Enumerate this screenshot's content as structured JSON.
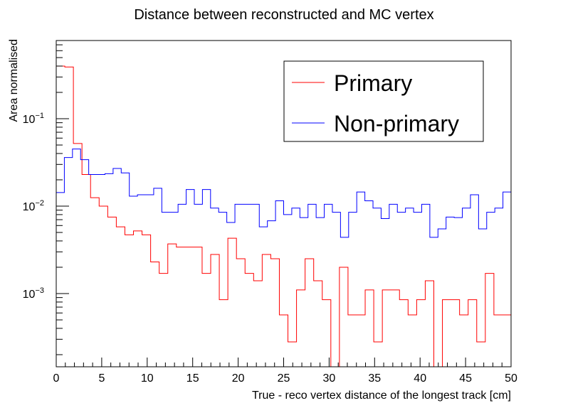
{
  "chart_data": {
    "type": "histogram-step",
    "title": "Distance between reconstructed and MC vertex",
    "xlabel": "True - reco vertex distance of the longest track [cm]",
    "ylabel": "Area normalised",
    "xlim": [
      0,
      50
    ],
    "ylim": [
      0.00015,
      0.75
    ],
    "yscale": "log",
    "grid": false,
    "legend_position": "top-right",
    "bin_width": 1,
    "x_ticks": [
      0,
      5,
      10,
      15,
      20,
      25,
      30,
      35,
      40,
      45,
      50
    ],
    "x_tick_labels": [
      "0",
      "5",
      "10",
      "15",
      "20",
      "25",
      "30",
      "35",
      "40",
      "45",
      "50"
    ],
    "y_tick_labels": [
      {
        "value": 0.1,
        "base": "10",
        "exp": "−1"
      },
      {
        "value": 0.01,
        "base": "10",
        "exp": "−2"
      },
      {
        "value": 0.001,
        "base": "10",
        "exp": "−3"
      }
    ],
    "series": [
      {
        "name": "Primary",
        "color": "#ff0000",
        "values": [
          0.4,
          0.39,
          0.052,
          0.023,
          0.0125,
          0.01,
          0.0075,
          0.0058,
          0.0047,
          0.0052,
          0.0047,
          0.0023,
          0.0017,
          0.0037,
          0.0034,
          0.0034,
          0.0034,
          0.0017,
          0.0028,
          0.00085,
          0.0043,
          0.0025,
          0.0017,
          0.0014,
          0.0028,
          0.0025,
          0.00057,
          0.00028,
          0.0011,
          0.0025,
          0.0014,
          0.00085,
          1e-05,
          0.002,
          0.00057,
          0.00057,
          0.0011,
          0.00028,
          0.0011,
          0.0011,
          0.00085,
          0.00057,
          0.00085,
          0.0014,
          1e-05,
          0.00085,
          0.00085,
          0.00057,
          0.00085,
          0.00028,
          0.0017,
          0.00057,
          0.00057
        ]
      },
      {
        "name": "Non-primary",
        "color": "#0000ff",
        "values": [
          0.0143,
          0.036,
          0.045,
          0.034,
          0.023,
          0.023,
          0.0235,
          0.027,
          0.024,
          0.013,
          0.0135,
          0.0135,
          0.016,
          0.0085,
          0.0085,
          0.0105,
          0.0155,
          0.0105,
          0.0155,
          0.0095,
          0.0085,
          0.0065,
          0.0105,
          0.0105,
          0.0105,
          0.0058,
          0.0068,
          0.0115,
          0.008,
          0.0095,
          0.0074,
          0.0105,
          0.0074,
          0.0105,
          0.0085,
          0.0044,
          0.0085,
          0.0145,
          0.0115,
          0.0095,
          0.0072,
          0.0105,
          0.0085,
          0.0095,
          0.0085,
          0.0105,
          0.0044,
          0.0055,
          0.0075,
          0.0074,
          0.0095,
          0.0135,
          0.0055,
          0.0085,
          0.0095,
          0.0145
        ]
      }
    ]
  }
}
